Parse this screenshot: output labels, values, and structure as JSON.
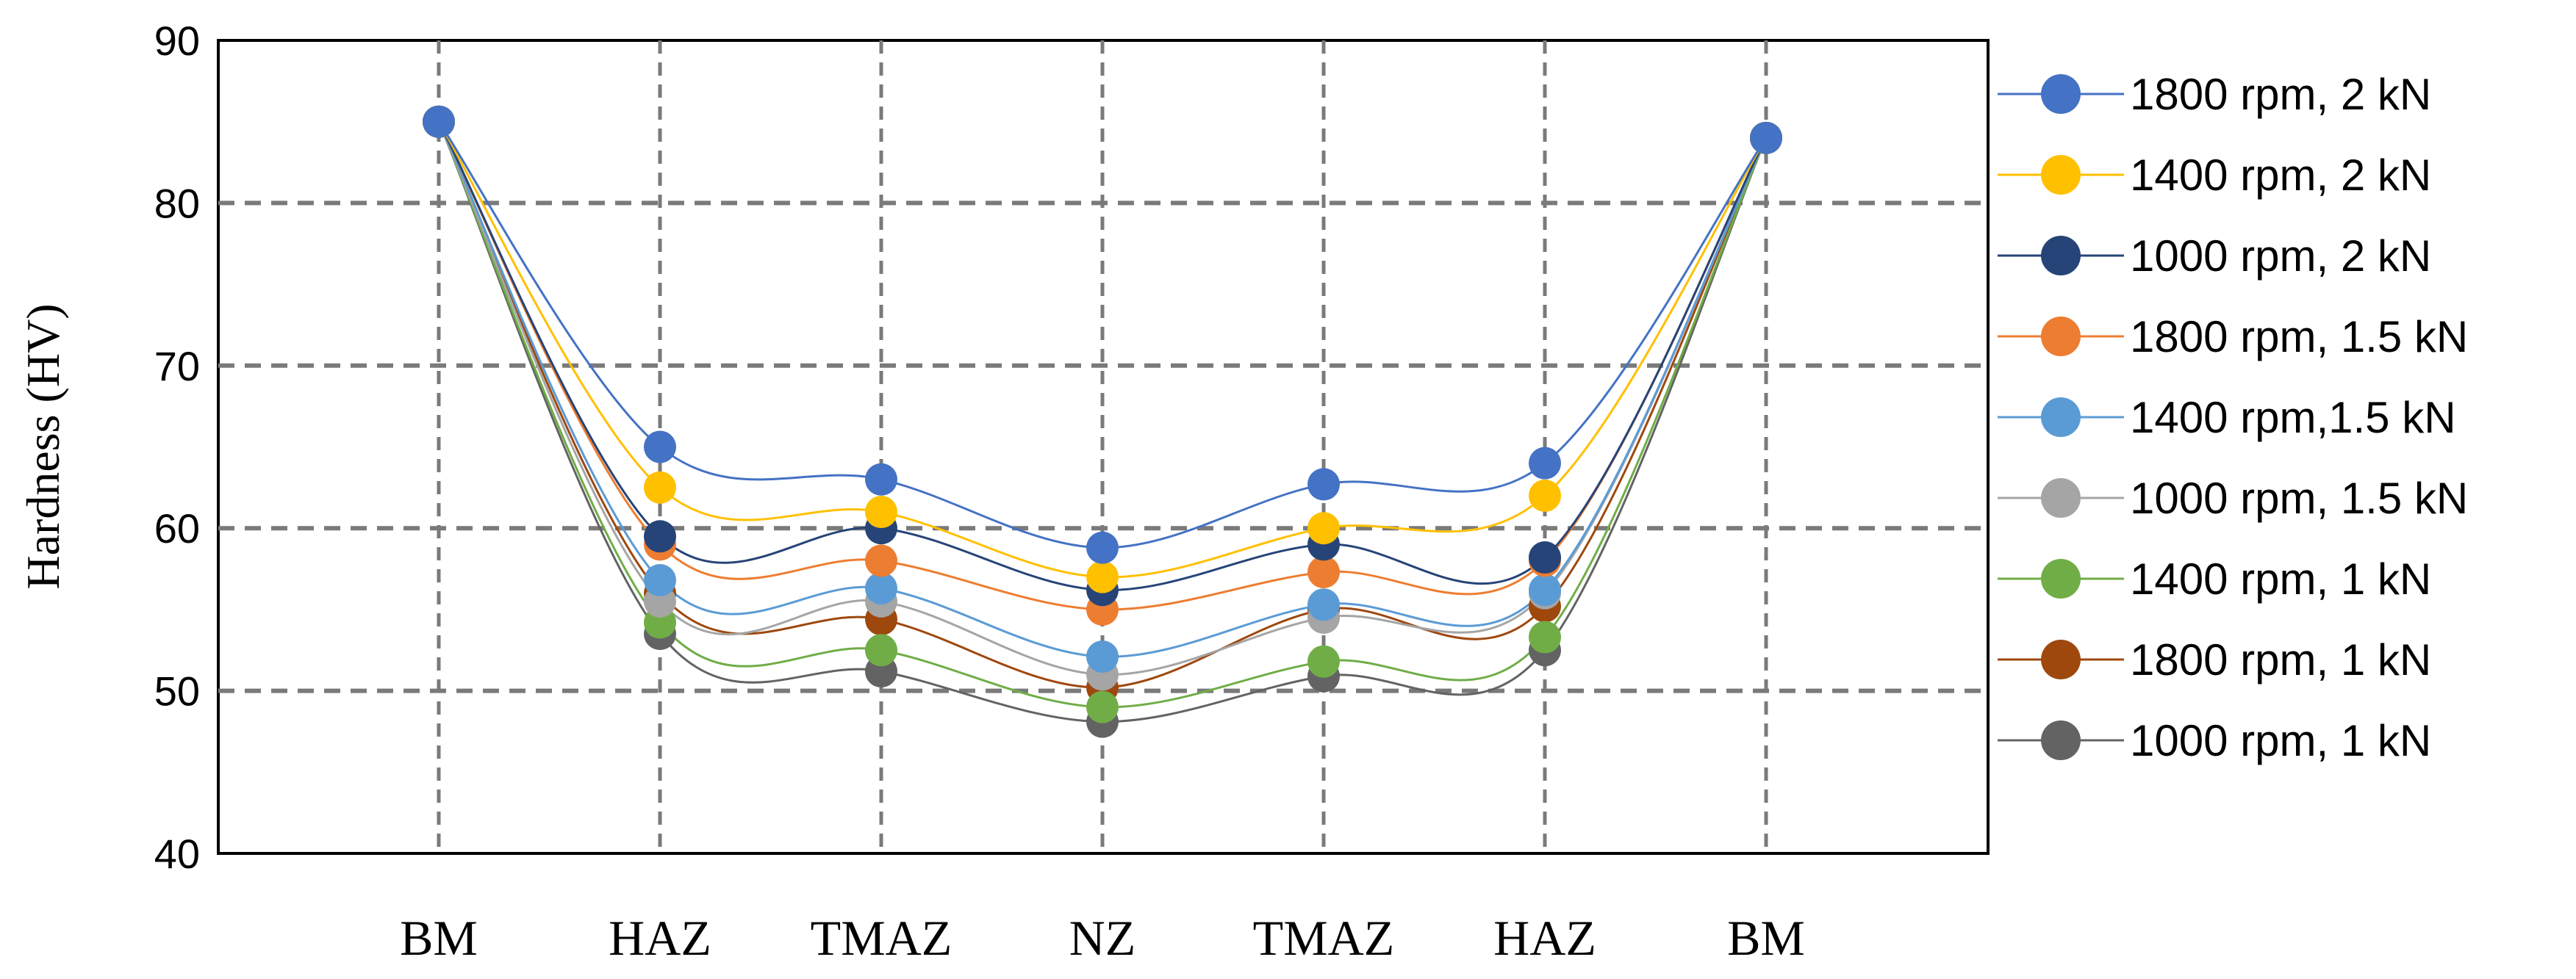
{
  "chart_data": {
    "type": "line",
    "title": "",
    "xlabel": "",
    "ylabel": "Hardness (HV)",
    "ylim": [
      40,
      90
    ],
    "yticks": [
      40,
      50,
      60,
      70,
      80,
      90
    ],
    "categories": [
      "BM",
      "HAZ",
      "TMAZ",
      "NZ",
      "TMAZ",
      "HAZ",
      "BM"
    ],
    "grid": true,
    "smooth": true,
    "legend_position": "right",
    "series": [
      {
        "name": "1800 rpm, 2 kN",
        "color": "#4472C4",
        "values": [
          85,
          65,
          63,
          58.8,
          62.7,
          64,
          84
        ]
      },
      {
        "name": "1400 rpm, 2 kN",
        "color": "#FFC000",
        "values": [
          85,
          62.5,
          61,
          57,
          60,
          62,
          84
        ]
      },
      {
        "name": "1000 rpm, 2 kN",
        "color": "#264478",
        "values": [
          85,
          59.5,
          60,
          56.2,
          59,
          58.2,
          84
        ]
      },
      {
        "name": "1800 rpm, 1.5 kN",
        "color": "#ED7D31",
        "values": [
          85,
          59,
          58,
          55,
          57.3,
          58,
          84
        ]
      },
      {
        "name": "1400 rpm,1.5 kN",
        "color": "#5B9BD5",
        "values": [
          85,
          56.8,
          56.3,
          52.1,
          55.3,
          56.2,
          84
        ]
      },
      {
        "name": "1000 rpm, 1.5 kN",
        "color": "#A5A5A5",
        "values": [
          85,
          55.5,
          55.5,
          51,
          54.5,
          56,
          84
        ]
      },
      {
        "name": "1400 rpm, 1 kN",
        "color": "#70AD47",
        "values": [
          85,
          54.2,
          52.5,
          49,
          51.8,
          53.3,
          84
        ]
      },
      {
        "name": "1800 rpm, 1 kN",
        "color": "#9E480E",
        "values": [
          85,
          56,
          54.4,
          50.2,
          55,
          55.2,
          84
        ]
      },
      {
        "name": "1000 rpm, 1 kN",
        "color": "#636363",
        "values": [
          85,
          53.5,
          51.2,
          48.1,
          50.9,
          52.5,
          84
        ]
      }
    ]
  }
}
